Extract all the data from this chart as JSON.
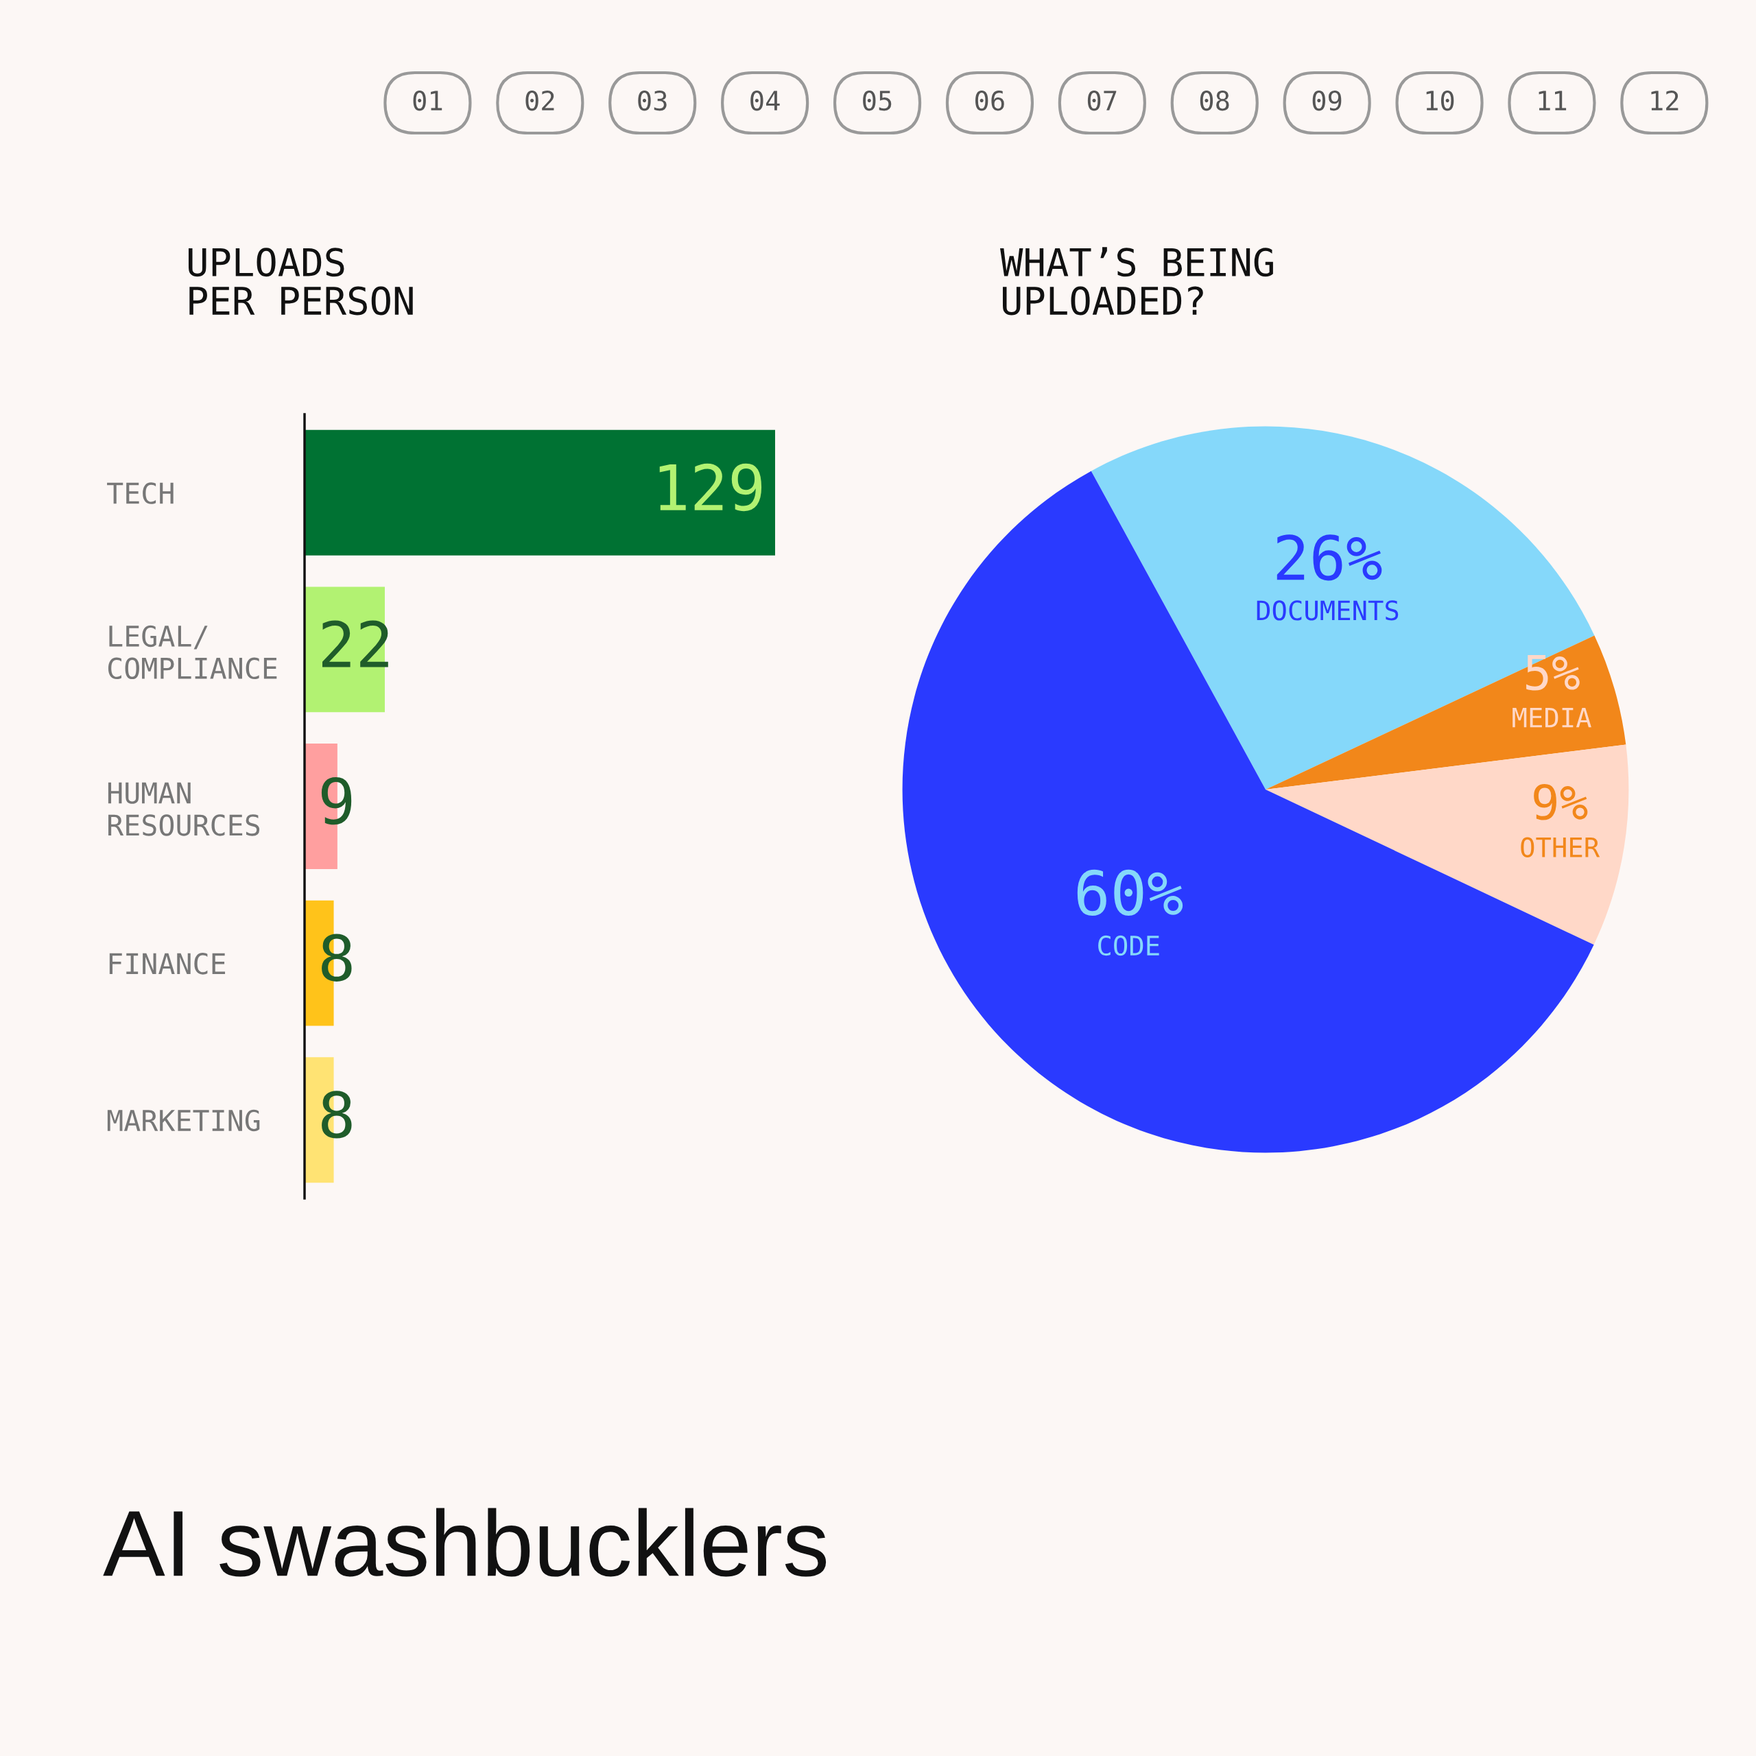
{
  "chart_data": [
    {
      "type": "bar",
      "orientation": "horizontal",
      "title": "UPLOADS\nPER PERSON",
      "categories": [
        "TECH",
        "LEGAL/\nCOMPLIANCE",
        "HUMAN\nRESOURCES",
        "FINANCE",
        "MARKETING"
      ],
      "values": [
        129,
        22,
        9,
        8,
        8
      ],
      "colors": [
        "#007233",
        "#b2f272",
        "#ff9f9f",
        "#ffc31a",
        "#ffe373"
      ],
      "data_labels": true
    },
    {
      "type": "pie",
      "title": "WHAT’S BEING\nUPLOADED?",
      "categories": [
        "DOCUMENTS",
        "MEDIA",
        "OTHER",
        "CODE"
      ],
      "values": [
        26,
        5,
        9,
        60
      ],
      "value_labels": [
        "26%",
        "5%",
        "9%",
        "60%"
      ],
      "colors": [
        "#85d8fa",
        "#f2871a",
        "#ffd8c8",
        "#2a3aff"
      ]
    },
    {
      "type": "other",
      "title": "AI swashbucklers",
      "annotations": [
        "01",
        "02",
        "03",
        "04",
        "05",
        "06",
        "07",
        "08",
        "09",
        "10",
        "11",
        "12"
      ]
    }
  ]
}
